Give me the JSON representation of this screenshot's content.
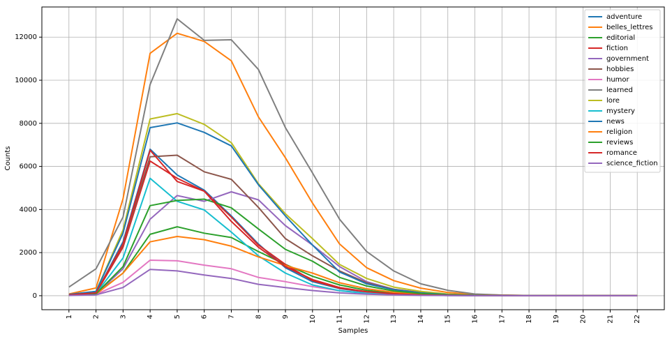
{
  "chart_data": {
    "type": "line",
    "title": "",
    "xlabel": "Samples",
    "ylabel": "Counts",
    "x": [
      "1",
      "2",
      "3",
      "4",
      "5",
      "6",
      "7",
      "8",
      "9",
      "10",
      "11",
      "12",
      "13",
      "14",
      "15",
      "16",
      "17",
      "18",
      "19",
      "20",
      "21",
      "22"
    ],
    "xlim": [
      0,
      23
    ],
    "ylim": [
      -650,
      13400
    ],
    "yticks": [
      0,
      2000,
      4000,
      6000,
      8000,
      10000,
      12000
    ],
    "grid": true,
    "legend_position": "top-right",
    "series": [
      {
        "name": "adventure",
        "color": "#1f77b4",
        "values": [
          40,
          120,
          2500,
          6800,
          5600,
          4900,
          3700,
          2400,
          1300,
          650,
          330,
          170,
          80,
          40,
          20,
          10,
          5,
          3,
          2,
          1,
          0,
          0
        ]
      },
      {
        "name": "belles_lettres",
        "color": "#ff7f0e",
        "values": [
          80,
          360,
          4500,
          11250,
          12180,
          11800,
          10900,
          8300,
          6400,
          4300,
          2400,
          1300,
          700,
          350,
          150,
          60,
          25,
          10,
          5,
          2,
          1,
          0
        ]
      },
      {
        "name": "editorial",
        "color": "#2ca02c",
        "values": [
          30,
          90,
          1050,
          2850,
          3200,
          2900,
          2700,
          2050,
          1450,
          900,
          500,
          250,
          120,
          60,
          25,
          10,
          5,
          2,
          1,
          0,
          0,
          0
        ]
      },
      {
        "name": "fiction",
        "color": "#d62728",
        "values": [
          40,
          120,
          2250,
          6250,
          5450,
          4850,
          3650,
          2350,
          1450,
          700,
          350,
          180,
          90,
          40,
          20,
          10,
          5,
          2,
          1,
          0,
          0,
          0
        ]
      },
      {
        "name": "government",
        "color": "#9467bd",
        "values": [
          30,
          80,
          1250,
          3550,
          4650,
          4380,
          4820,
          4450,
          3250,
          2350,
          1350,
          650,
          300,
          150,
          60,
          25,
          10,
          5,
          2,
          1,
          0,
          0
        ]
      },
      {
        "name": "hobbies",
        "color": "#8c564b",
        "values": [
          40,
          150,
          2350,
          6450,
          6520,
          5750,
          5400,
          4100,
          2650,
          1850,
          1150,
          600,
          300,
          140,
          60,
          25,
          10,
          5,
          2,
          1,
          0,
          0
        ]
      },
      {
        "name": "humor",
        "color": "#e377c2",
        "values": [
          20,
          60,
          620,
          1650,
          1620,
          1420,
          1250,
          850,
          650,
          420,
          230,
          120,
          60,
          30,
          12,
          5,
          2,
          1,
          0,
          0,
          0,
          0
        ]
      },
      {
        "name": "learned",
        "color": "#7f7f7f",
        "values": [
          400,
          1250,
          3650,
          9800,
          12850,
          11850,
          11880,
          10500,
          7800,
          5700,
          3550,
          2050,
          1150,
          550,
          250,
          80,
          30,
          12,
          5,
          2,
          1,
          0
        ]
      },
      {
        "name": "lore",
        "color": "#bcbd22",
        "values": [
          50,
          200,
          3050,
          8200,
          8450,
          7950,
          7100,
          5200,
          3800,
          2650,
          1450,
          800,
          400,
          200,
          80,
          30,
          12,
          5,
          2,
          1,
          0,
          0
        ]
      },
      {
        "name": "mystery",
        "color": "#17becf",
        "values": [
          30,
          100,
          1750,
          5450,
          4380,
          3980,
          2950,
          1850,
          1050,
          500,
          230,
          110,
          50,
          25,
          10,
          4,
          2,
          1,
          0,
          0,
          0,
          0
        ]
      },
      {
        "name": "news",
        "color": "#1f77b4",
        "values": [
          60,
          200,
          2900,
          7800,
          8020,
          7580,
          6950,
          5150,
          3700,
          2350,
          1100,
          550,
          280,
          130,
          55,
          20,
          8,
          3,
          1,
          0,
          0,
          0
        ]
      },
      {
        "name": "religion",
        "color": "#ff7f0e",
        "values": [
          20,
          70,
          1050,
          2500,
          2750,
          2600,
          2300,
          1800,
          1400,
          1050,
          600,
          320,
          160,
          80,
          35,
          12,
          5,
          2,
          1,
          0,
          0,
          0
        ]
      },
      {
        "name": "reviews",
        "color": "#2ca02c",
        "values": [
          30,
          90,
          1350,
          4180,
          4420,
          4480,
          4080,
          3100,
          2150,
          1600,
          850,
          450,
          220,
          100,
          40,
          15,
          6,
          2,
          1,
          0,
          0,
          0
        ]
      },
      {
        "name": "romance",
        "color": "#d62728",
        "values": [
          40,
          130,
          2400,
          6750,
          5300,
          4850,
          3450,
          2250,
          1350,
          750,
          380,
          190,
          90,
          40,
          18,
          7,
          3,
          1,
          0,
          0,
          0,
          0
        ]
      },
      {
        "name": "science_fiction",
        "color": "#9467bd",
        "values": [
          10,
          40,
          380,
          1220,
          1150,
          960,
          800,
          530,
          380,
          240,
          130,
          70,
          35,
          15,
          6,
          2,
          1,
          0,
          0,
          0,
          0,
          0
        ]
      }
    ]
  }
}
